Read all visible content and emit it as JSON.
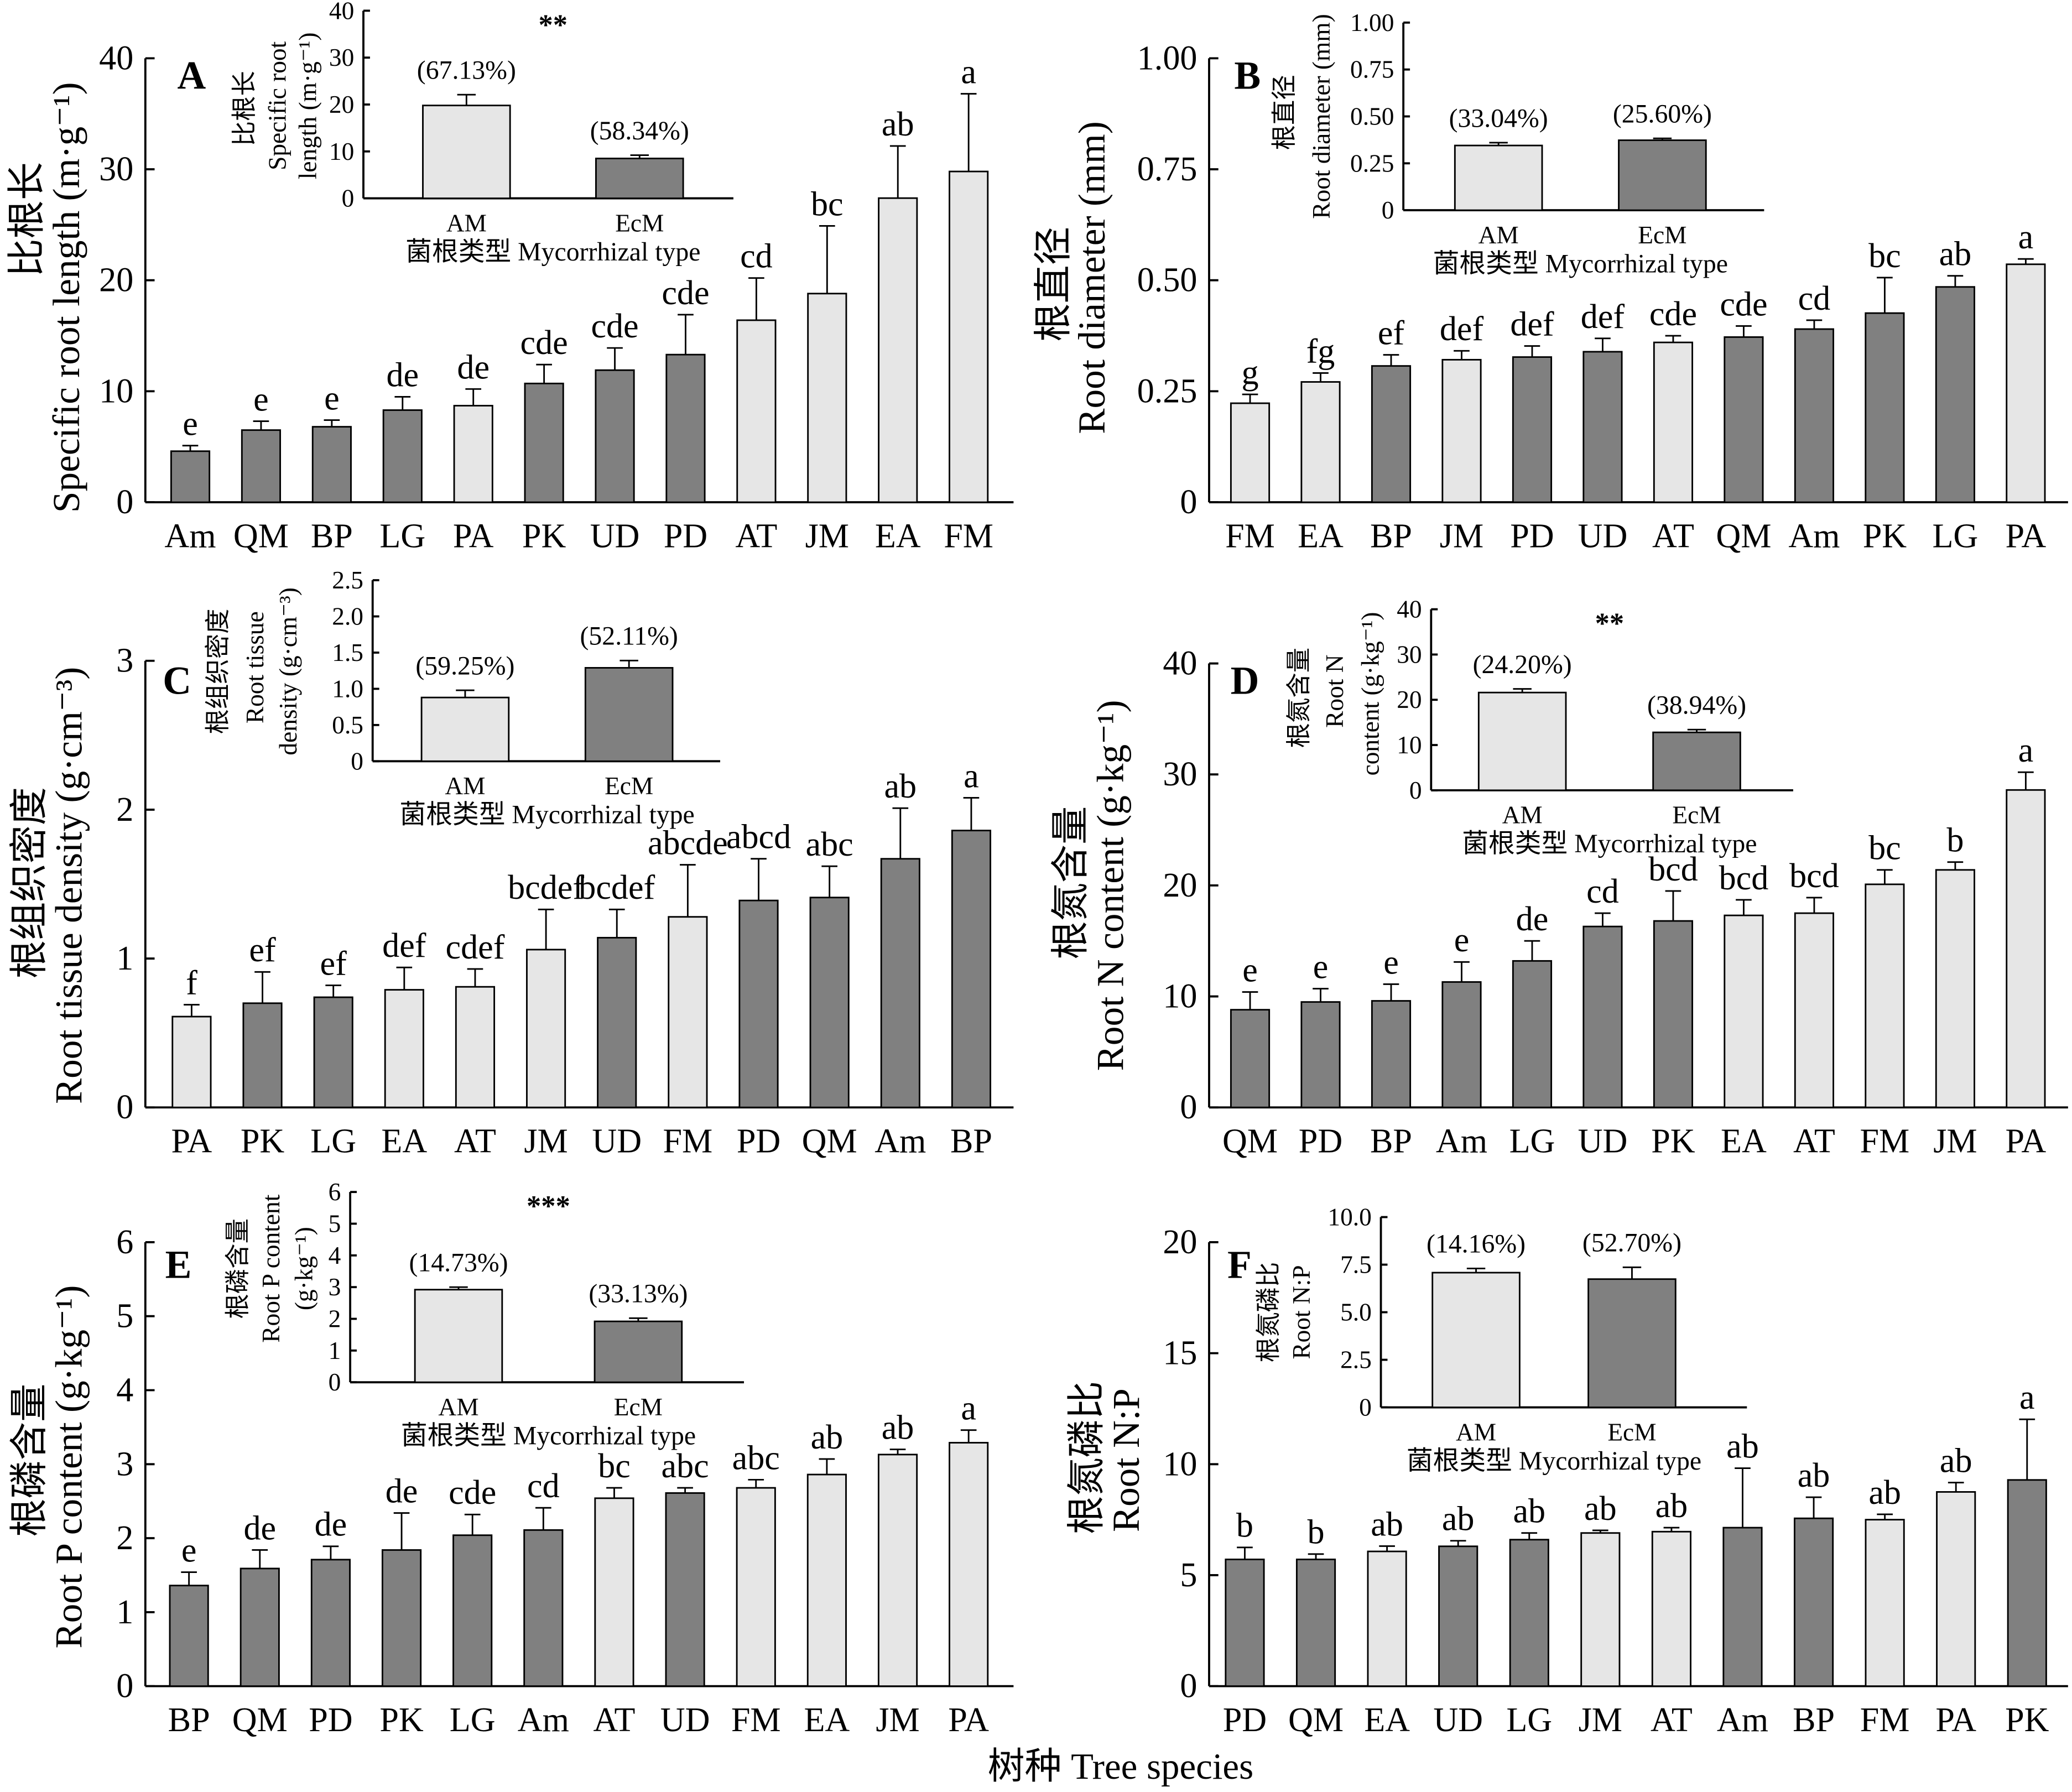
{
  "figure": {
    "xlabel": "树种 Tree species"
  },
  "chart_data": [
    {
      "panel": "A",
      "type": "bar",
      "ylabel_lines": [
        "比根长",
        "Specific root length (m·g⁻¹)"
      ],
      "ylim": [
        0,
        40
      ],
      "yticks": [
        "0",
        "10",
        "20",
        "30",
        "40"
      ],
      "categories": [
        "Am",
        "QM",
        "BP",
        "LG",
        "PA",
        "PK",
        "UD",
        "PD",
        "AT",
        "JM",
        "EA",
        "FM"
      ],
      "values": [
        4.6,
        6.5,
        6.8,
        8.3,
        8.7,
        10.7,
        11.9,
        13.3,
        16.4,
        18.8,
        27.4,
        29.8
      ],
      "errors": [
        0.5,
        0.8,
        0.6,
        1.2,
        1.5,
        1.7,
        2.0,
        3.6,
        3.8,
        6.1,
        4.7,
        7.0
      ],
      "letters": [
        "e",
        "e",
        "e",
        "de",
        "de",
        "cde",
        "cde",
        "cde",
        "cd",
        "bc",
        "ab",
        "a"
      ],
      "bar_colors": [
        "#808080",
        "#808080",
        "#808080",
        "#808080",
        "#e6e6e6",
        "#808080",
        "#808080",
        "#808080",
        "#e6e6e6",
        "#e6e6e6",
        "#e6e6e6",
        "#e6e6e6"
      ],
      "inset": {
        "type": "bar",
        "ylabel_lines": [
          "比根长",
          "Specific root",
          "length (m·g⁻¹)"
        ],
        "xlabel": "菌根类型 Mycorrhizal type",
        "ylim": [
          0,
          40
        ],
        "yticks": [
          "0",
          "10",
          "20",
          "30",
          "40"
        ],
        "categories": [
          "AM",
          "EcM"
        ],
        "values": [
          19.8,
          8.5
        ],
        "errors": [
          2.3,
          0.7
        ],
        "annotations": [
          "(67.13%)",
          "(58.34%)"
        ],
        "significance": "**",
        "bar_colors": [
          "#e6e6e6",
          "#808080"
        ]
      }
    },
    {
      "panel": "B",
      "type": "bar",
      "ylabel_lines": [
        "根直径",
        "Root diameter (mm)"
      ],
      "ylim": [
        0,
        1
      ],
      "yticks": [
        "0",
        "0.25",
        "0.50",
        "0.75",
        "1.00"
      ],
      "categories": [
        "FM",
        "EA",
        "BP",
        "JM",
        "PD",
        "UD",
        "AT",
        "QM",
        "Am",
        "PK",
        "LG",
        "PA"
      ],
      "values": [
        0.223,
        0.271,
        0.307,
        0.321,
        0.327,
        0.339,
        0.36,
        0.372,
        0.39,
        0.426,
        0.485,
        0.536
      ],
      "errors": [
        0.02,
        0.02,
        0.025,
        0.02,
        0.025,
        0.03,
        0.015,
        0.025,
        0.02,
        0.08,
        0.025,
        0.012
      ],
      "letters": [
        "g",
        "fg",
        "ef",
        "def",
        "def",
        "def",
        "cde",
        "cde",
        "cd",
        "bc",
        "ab",
        "a"
      ],
      "bar_colors": [
        "#e6e6e6",
        "#e6e6e6",
        "#808080",
        "#e6e6e6",
        "#808080",
        "#808080",
        "#e6e6e6",
        "#808080",
        "#808080",
        "#808080",
        "#808080",
        "#e6e6e6"
      ],
      "inset": {
        "type": "bar",
        "ylabel_lines": [
          "根直径",
          "Root diameter (mm)"
        ],
        "xlabel": "菌根类型 Mycorrhizal type",
        "ylim": [
          0,
          1
        ],
        "yticks": [
          "0",
          "0.25",
          "0.50",
          "0.75",
          "1.00"
        ],
        "categories": [
          "AM",
          "EcM"
        ],
        "values": [
          0.345,
          0.373
        ],
        "errors": [
          0.015,
          0.01
        ],
        "annotations": [
          "(33.04%)",
          "(25.60%)"
        ],
        "bar_colors": [
          "#e6e6e6",
          "#808080"
        ]
      }
    },
    {
      "panel": "C",
      "type": "bar",
      "ylabel_lines": [
        "根组织密度",
        "Root tissue density (g·cm⁻³)"
      ],
      "ylim": [
        0,
        3
      ],
      "yticks": [
        "0",
        "1",
        "2",
        "3"
      ],
      "categories": [
        "PA",
        "PK",
        "LG",
        "EA",
        "AT",
        "JM",
        "UD",
        "FM",
        "PD",
        "QM",
        "Am",
        "BP"
      ],
      "values": [
        0.61,
        0.7,
        0.74,
        0.79,
        0.81,
        1.06,
        1.14,
        1.28,
        1.39,
        1.41,
        1.67,
        1.86
      ],
      "errors": [
        0.08,
        0.21,
        0.08,
        0.15,
        0.12,
        0.27,
        0.19,
        0.35,
        0.28,
        0.21,
        0.34,
        0.22
      ],
      "letters": [
        "f",
        "ef",
        "ef",
        "def",
        "cdef",
        "bcdef",
        "bcdef",
        "abcde",
        "abcd",
        "abc",
        "ab",
        "a"
      ],
      "bar_colors": [
        "#e6e6e6",
        "#808080",
        "#808080",
        "#e6e6e6",
        "#e6e6e6",
        "#e6e6e6",
        "#808080",
        "#e6e6e6",
        "#808080",
        "#808080",
        "#808080",
        "#808080"
      ],
      "inset": {
        "type": "bar",
        "ylabel_lines": [
          "根组织密度",
          "Root tissue",
          "density (g·cm⁻³)"
        ],
        "xlabel": "菌根类型 Mycorrhizal type",
        "ylim": [
          0,
          2.5
        ],
        "yticks": [
          "0",
          "0.5",
          "1.0",
          "1.5",
          "2.0",
          "2.5"
        ],
        "categories": [
          "AM",
          "EcM"
        ],
        "values": [
          0.88,
          1.29
        ],
        "errors": [
          0.1,
          0.1
        ],
        "annotations": [
          "(59.25%)",
          "(52.11%)"
        ],
        "bar_colors": [
          "#e6e6e6",
          "#808080"
        ]
      }
    },
    {
      "panel": "D",
      "type": "bar",
      "ylabel_lines": [
        "根氮含量",
        "Root N content (g·kg⁻¹)"
      ],
      "ylim": [
        0,
        40
      ],
      "yticks": [
        "0",
        "10",
        "20",
        "30",
        "40"
      ],
      "categories": [
        "QM",
        "PD",
        "BP",
        "Am",
        "LG",
        "UD",
        "PK",
        "EA",
        "AT",
        "FM",
        "JM",
        "PA"
      ],
      "values": [
        8.8,
        9.5,
        9.6,
        11.3,
        13.2,
        16.3,
        16.8,
        17.3,
        17.5,
        20.1,
        21.4,
        28.6
      ],
      "errors": [
        1.6,
        1.2,
        1.5,
        1.8,
        1.8,
        1.2,
        2.7,
        1.4,
        1.4,
        1.3,
        0.7,
        1.6
      ],
      "letters": [
        "e",
        "e",
        "e",
        "e",
        "de",
        "cd",
        "bcd",
        "bcd",
        "bcd",
        "bc",
        "b",
        "a"
      ],
      "bar_colors": [
        "#808080",
        "#808080",
        "#808080",
        "#808080",
        "#808080",
        "#808080",
        "#808080",
        "#e6e6e6",
        "#e6e6e6",
        "#e6e6e6",
        "#e6e6e6",
        "#e6e6e6"
      ],
      "inset": {
        "type": "bar",
        "ylabel_lines": [
          "根氮含量",
          "Root N",
          "content (g·kg⁻¹)"
        ],
        "xlabel": "菌根类型 Mycorrhizal type",
        "ylim": [
          0,
          40
        ],
        "yticks": [
          "0",
          "10",
          "20",
          "30",
          "40"
        ],
        "categories": [
          "AM",
          "EcM"
        ],
        "values": [
          21.6,
          12.8
        ],
        "errors": [
          0.8,
          0.6
        ],
        "annotations": [
          "(24.20%)",
          "(38.94%)"
        ],
        "significance": "**",
        "bar_colors": [
          "#e6e6e6",
          "#808080"
        ]
      }
    },
    {
      "panel": "E",
      "type": "bar",
      "ylabel_lines": [
        "根磷含量",
        "Root P content (g·kg⁻¹)"
      ],
      "ylim": [
        0,
        6
      ],
      "yticks": [
        "0",
        "1",
        "2",
        "3",
        "4",
        "5",
        "6"
      ],
      "categories": [
        "BP",
        "QM",
        "PD",
        "PK",
        "LG",
        "Am",
        "AT",
        "UD",
        "FM",
        "EA",
        "JM",
        "PA"
      ],
      "values": [
        1.36,
        1.59,
        1.71,
        1.84,
        2.04,
        2.11,
        2.54,
        2.61,
        2.68,
        2.86,
        3.13,
        3.29
      ],
      "errors": [
        0.18,
        0.25,
        0.18,
        0.5,
        0.28,
        0.3,
        0.14,
        0.07,
        0.11,
        0.21,
        0.07,
        0.17
      ],
      "letters": [
        "e",
        "de",
        "de",
        "de",
        "cde",
        "cd",
        "bc",
        "abc",
        "abc",
        "ab",
        "ab",
        "a"
      ],
      "bar_colors": [
        "#808080",
        "#808080",
        "#808080",
        "#808080",
        "#808080",
        "#808080",
        "#e6e6e6",
        "#808080",
        "#e6e6e6",
        "#e6e6e6",
        "#e6e6e6",
        "#e6e6e6"
      ],
      "inset": {
        "type": "bar",
        "ylabel_lines": [
          "根磷含量",
          "Root P content",
          "(g·kg⁻¹)"
        ],
        "xlabel": "菌根类型 Mycorrhizal type",
        "ylim": [
          0,
          6
        ],
        "yticks": [
          "0",
          "1",
          "2",
          "3",
          "4",
          "5",
          "6"
        ],
        "categories": [
          "AM",
          "EcM"
        ],
        "values": [
          2.92,
          1.92
        ],
        "errors": [
          0.08,
          0.1
        ],
        "annotations": [
          "(14.73%)",
          "(33.13%)"
        ],
        "significance": "***",
        "bar_colors": [
          "#e6e6e6",
          "#808080"
        ]
      }
    },
    {
      "panel": "F",
      "type": "bar",
      "ylabel_lines": [
        "根氮磷比",
        "Root N:P"
      ],
      "ylim": [
        0,
        20
      ],
      "yticks": [
        "0",
        "5",
        "10",
        "15",
        "20"
      ],
      "categories": [
        "PD",
        "QM",
        "EA",
        "UD",
        "LG",
        "JM",
        "AT",
        "Am",
        "BP",
        "FM",
        "PA",
        "PK"
      ],
      "values": [
        5.71,
        5.71,
        6.07,
        6.3,
        6.6,
        6.9,
        6.96,
        7.14,
        7.56,
        7.5,
        8.75,
        9.29
      ],
      "errors": [
        0.54,
        0.24,
        0.24,
        0.25,
        0.3,
        0.12,
        0.18,
        2.68,
        0.95,
        0.24,
        0.42,
        2.73
      ],
      "letters": [
        "b",
        "b",
        "ab",
        "ab",
        "ab",
        "ab",
        "ab",
        "ab",
        "ab",
        "ab",
        "ab",
        "a"
      ],
      "bar_colors": [
        "#808080",
        "#808080",
        "#e6e6e6",
        "#808080",
        "#808080",
        "#e6e6e6",
        "#e6e6e6",
        "#808080",
        "#808080",
        "#e6e6e6",
        "#e6e6e6",
        "#808080"
      ],
      "inset": {
        "type": "bar",
        "ylabel_lines": [
          "根氮磷比",
          "Root N:P"
        ],
        "xlabel": "菌根类型 Mycorrhizal type",
        "ylim": [
          0,
          10
        ],
        "yticks": [
          "0",
          "2.5",
          "5.0",
          "7.5",
          "10.0"
        ],
        "categories": [
          "AM",
          "EcM"
        ],
        "values": [
          7.08,
          6.74
        ],
        "errors": [
          0.22,
          0.62
        ],
        "annotations": [
          "(14.16%)",
          "(52.70%)"
        ],
        "bar_colors": [
          "#e6e6e6",
          "#808080"
        ]
      }
    }
  ]
}
